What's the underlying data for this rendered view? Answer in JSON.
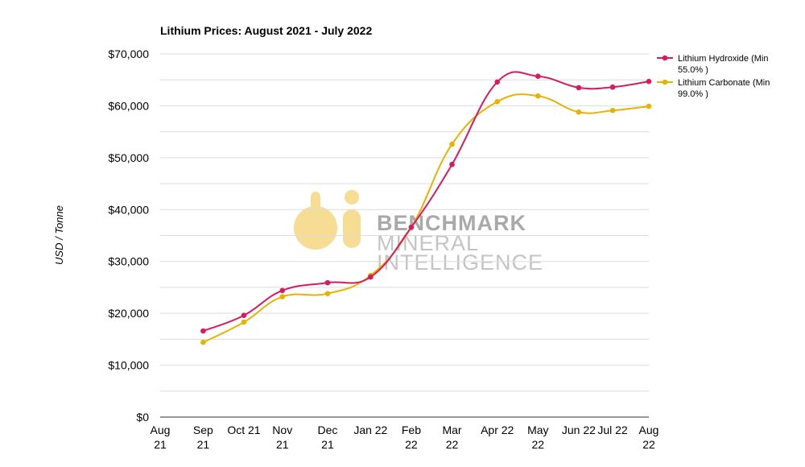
{
  "chart_data": {
    "type": "line",
    "title": "Lithium Prices: August 2021 - July 2022",
    "ylabel": "USD / Tonne",
    "xlabel": "",
    "ylim": [
      0,
      70000
    ],
    "y_ticks": [
      "$0",
      "$10,000",
      "$20,000",
      "$30,000",
      "$40,000",
      "$50,000",
      "$60,000",
      "$70,000"
    ],
    "categories": [
      [
        "Aug",
        "21"
      ],
      [
        "Sep",
        "21"
      ],
      [
        "Oct 21"
      ],
      [
        "Nov",
        "21"
      ],
      [
        "Dec",
        "21"
      ],
      [
        "Jan 22"
      ],
      [
        "Feb",
        "22"
      ],
      [
        "Mar",
        "22"
      ],
      [
        "Apr 22"
      ],
      [
        "May",
        "22"
      ],
      [
        "Jun 22"
      ],
      [
        "Jul 22"
      ],
      [
        "Aug",
        "22"
      ]
    ],
    "x": [
      0,
      0.95,
      1.85,
      2.7,
      3.7,
      4.65,
      5.55,
      6.45,
      7.45,
      8.35,
      9.25,
      10.0,
      10.8
    ],
    "series": [
      {
        "name": [
          "Lithium Hydroxide (Min",
          "55.0% )"
        ],
        "color": "#d81b60",
        "values": [
          null,
          16600,
          19600,
          24400,
          25900,
          27000,
          36600,
          48700,
          64600,
          65700,
          63500,
          63600,
          64700
        ]
      },
      {
        "name": [
          "Lithium Carbonate (Min",
          "99.0% )"
        ],
        "color": "#e6b400",
        "values": [
          null,
          14400,
          18300,
          23200,
          23800,
          27300,
          36600,
          52600,
          60800,
          61900,
          58800,
          59100,
          59900
        ]
      }
    ],
    "grid": true,
    "legend": "top-right"
  },
  "watermark": {
    "line1": "BENCHMARK",
    "line2": "MINERAL",
    "line3": "INTELLIGENCE",
    "logo_color": "#f7dc94"
  }
}
